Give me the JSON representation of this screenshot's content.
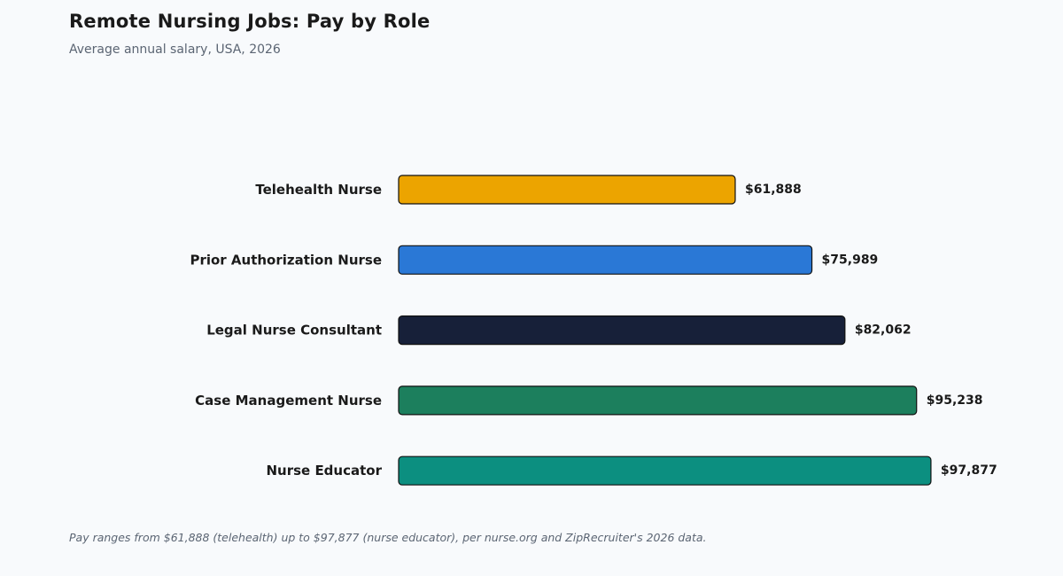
{
  "chart_data": {
    "type": "bar",
    "orientation": "horizontal",
    "title": "Remote Nursing Jobs: Pay by Role",
    "subtitle": "Average annual salary, USA, 2026",
    "categories": [
      "Telehealth Nurse",
      "Prior Authorization Nurse",
      "Legal Nurse Consultant",
      "Case Management Nurse",
      "Nurse Educator"
    ],
    "values": [
      61888,
      75989,
      82062,
      95238,
      97877
    ],
    "value_labels": [
      "$61,888",
      "$75,989",
      "$82,062",
      "$95,238",
      "$97,877"
    ],
    "colors": [
      "#eca400",
      "#2a78d6",
      "#172039",
      "#1c7f5d",
      "#0c8f80"
    ],
    "xlim": [
      0,
      100000
    ],
    "grid": false,
    "legend": "none",
    "footnote": "Pay ranges from $61,888 (telehealth) up to $97,877 (nurse educator), per nurse.org and ZipRecruiter's 2026 data."
  }
}
